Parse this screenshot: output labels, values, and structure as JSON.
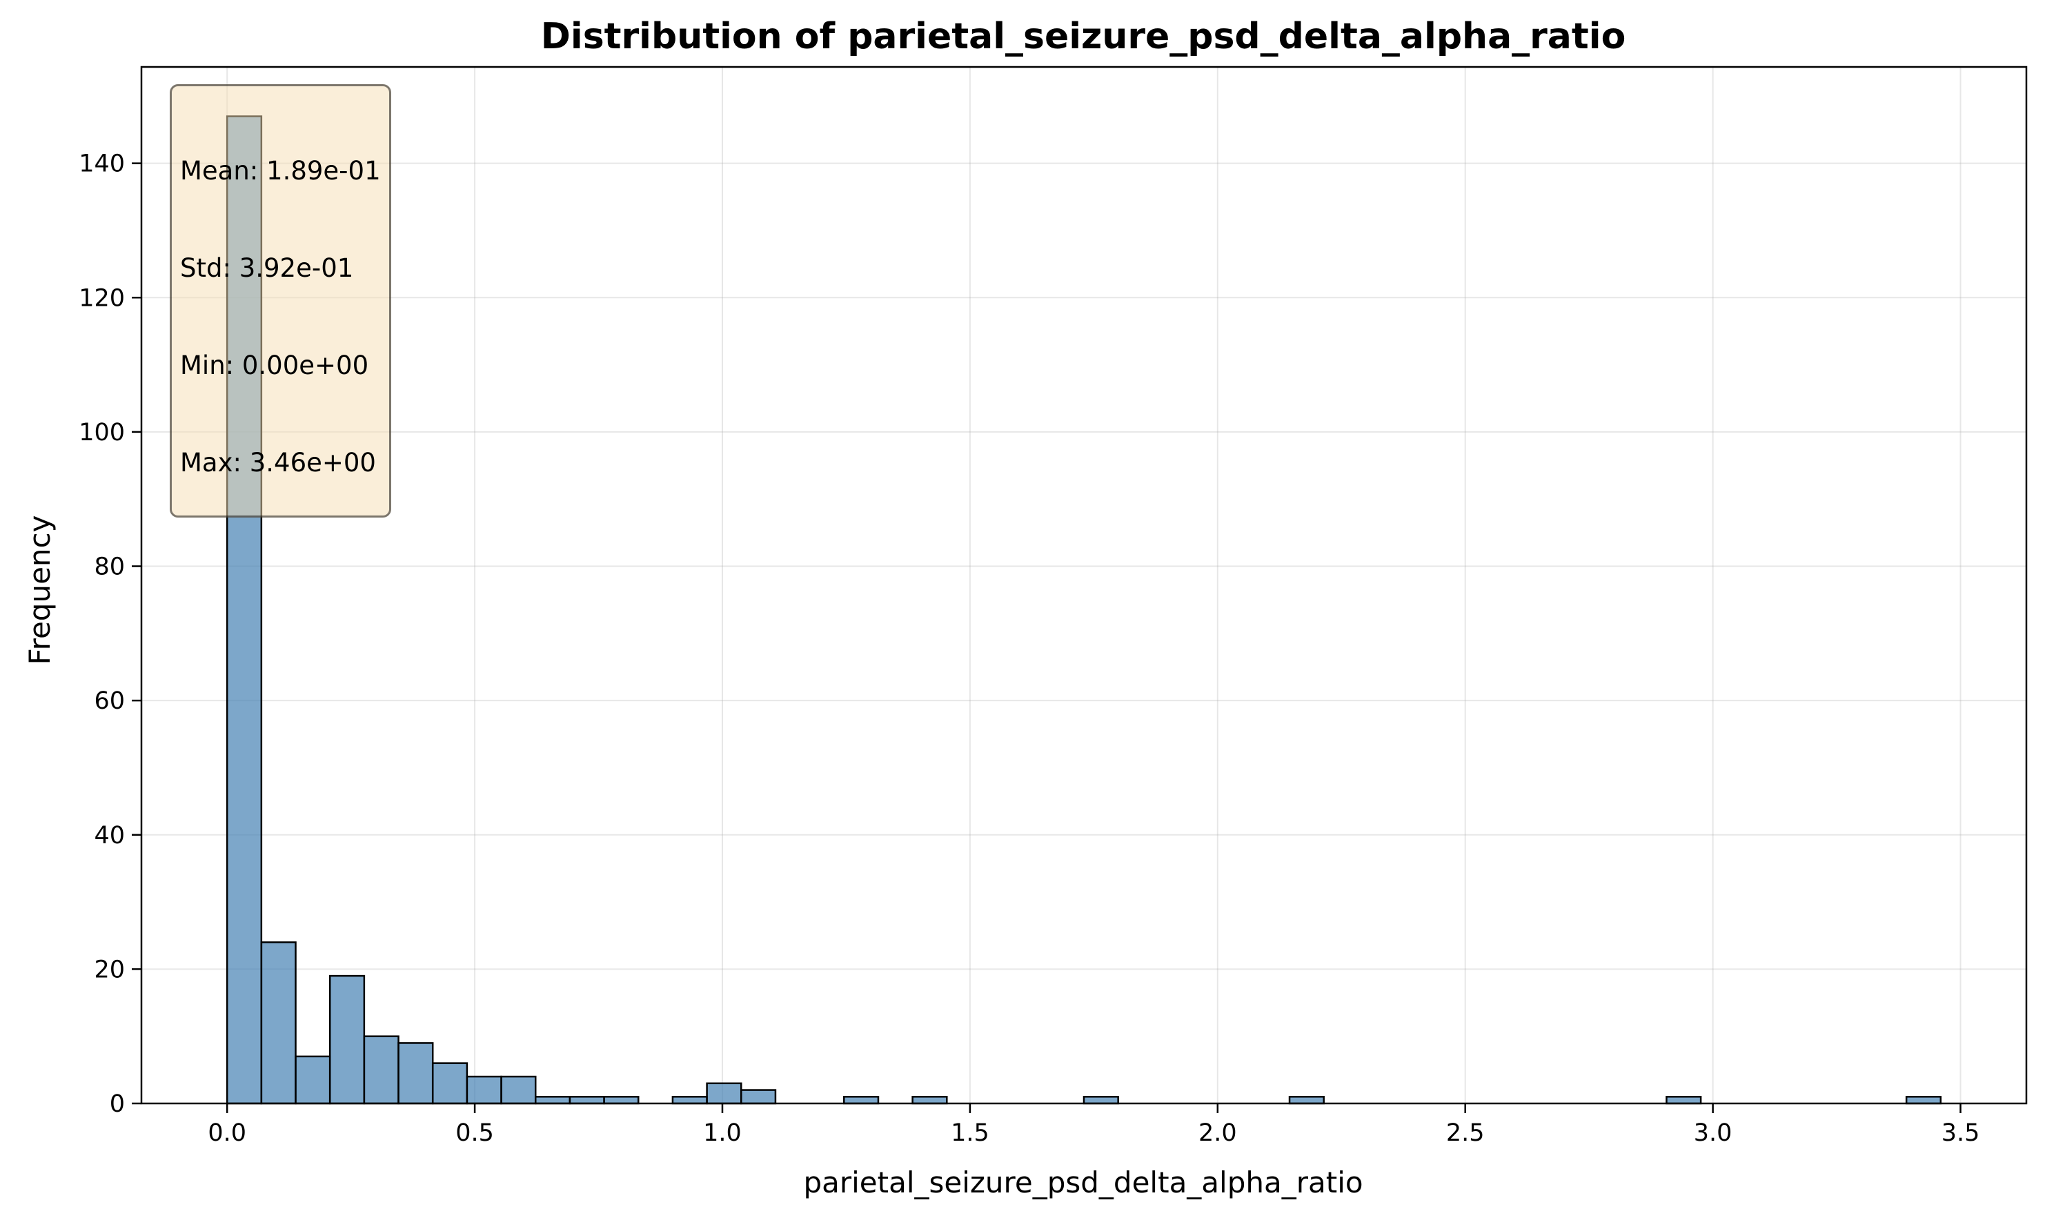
{
  "chart_data": {
    "type": "bar",
    "title": "Distribution of parietal_seizure_psd_delta_alpha_ratio",
    "xlabel": "parietal_seizure_psd_delta_alpha_ratio",
    "ylabel": "Frequency",
    "xlim": [
      -0.173,
      3.633
    ],
    "ylim": [
      0,
      154.35
    ],
    "xticks": [
      0.0,
      0.5,
      1.0,
      1.5,
      2.0,
      2.5,
      3.0,
      3.5
    ],
    "xtick_labels": [
      "0.0",
      "0.5",
      "1.0",
      "1.5",
      "2.0",
      "2.5",
      "3.0",
      "3.5"
    ],
    "yticks": [
      0,
      20,
      40,
      60,
      80,
      100,
      120,
      140
    ],
    "ytick_labels": [
      "0",
      "20",
      "40",
      "60",
      "80",
      "100",
      "120",
      "140"
    ],
    "grid": true,
    "bar_color": "#4682b4",
    "bar_edge_color": "#000000",
    "bin_start": 0.0,
    "bin_width": 0.0692,
    "counts": [
      147,
      24,
      7,
      19,
      10,
      9,
      6,
      4,
      4,
      1,
      1,
      1,
      0,
      1,
      3,
      2,
      0,
      0,
      1,
      0,
      1,
      0,
      0,
      0,
      0,
      1,
      0,
      0,
      0,
      0,
      0,
      1,
      0,
      0,
      0,
      0,
      0,
      0,
      0,
      0,
      0,
      0,
      1,
      0,
      0,
      0,
      0,
      0,
      0,
      1
    ],
    "stats_box": {
      "mean": "Mean: 1.89e-01",
      "std": "Std: 3.92e-01",
      "min": "Min: 0.00e+00",
      "max": "Max: 3.46e+00"
    }
  }
}
